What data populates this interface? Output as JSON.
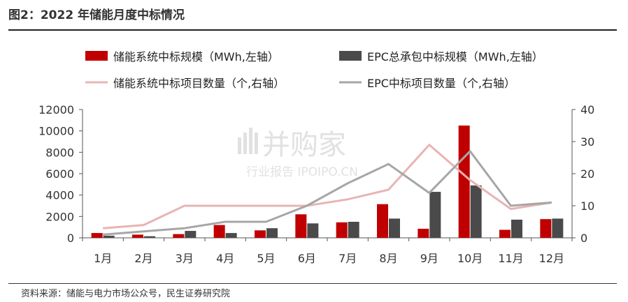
{
  "header": {
    "title": "图2：2022 年储能月度中标情况"
  },
  "footer": {
    "source": "资料来源：储能与电力市场公众号，民生证券研究院"
  },
  "watermark": {
    "main": "并购家",
    "sub": "行业报告 IPOIPO.CN"
  },
  "chart_data": {
    "type": "bar",
    "categories": [
      "1月",
      "2月",
      "3月",
      "4月",
      "5月",
      "6月",
      "7月",
      "8月",
      "9月",
      "10月",
      "11月",
      "12月"
    ],
    "series": [
      {
        "name": "储能系统中标规模（MWh,左轴）",
        "kind": "bar",
        "axis": "left",
        "color": "#c00000",
        "values": [
          450,
          300,
          350,
          1200,
          700,
          2200,
          1450,
          3150,
          850,
          10500,
          750,
          1750
        ]
      },
      {
        "name": "EPC总承包中标规模（MWh,左轴）",
        "kind": "bar",
        "axis": "left",
        "color": "#4a4a4a",
        "values": [
          200,
          150,
          650,
          450,
          900,
          1350,
          1500,
          1800,
          4300,
          4900,
          1700,
          1800
        ]
      },
      {
        "name": "储能系统中标项目数量（个,右轴）",
        "kind": "line",
        "axis": "right",
        "color": "#e8b4b4",
        "values": [
          3,
          4,
          10,
          10,
          10,
          10,
          12,
          15,
          29,
          18,
          9,
          11
        ]
      },
      {
        "name": "EPC中标项目数量（个,右轴）",
        "kind": "line",
        "axis": "right",
        "color": "#a6a6a6",
        "values": [
          1,
          2,
          3,
          5,
          5,
          10,
          17,
          23,
          14,
          27,
          10,
          11
        ]
      }
    ],
    "y_left": {
      "min": 0,
      "max": 12000,
      "ticks": [
        "0",
        "2000",
        "4000",
        "6000",
        "8000",
        "10000",
        "12000"
      ]
    },
    "y_right": {
      "min": 0,
      "max": 40,
      "ticks": [
        "0",
        "10",
        "20",
        "30",
        "40"
      ]
    },
    "legend_position": "top",
    "grid": false
  }
}
